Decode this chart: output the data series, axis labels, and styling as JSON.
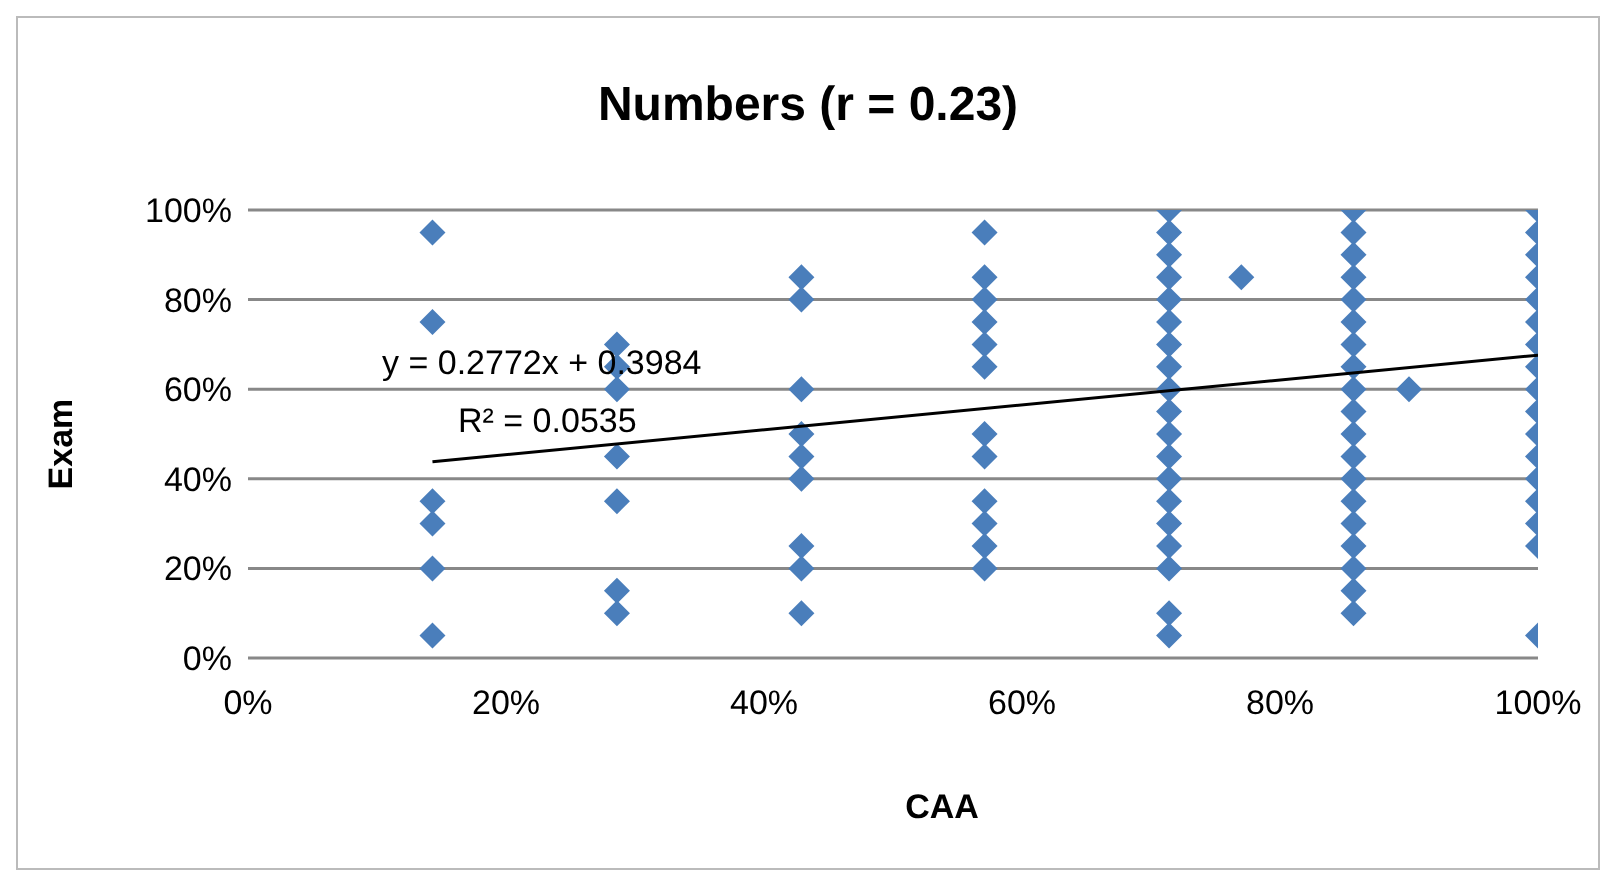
{
  "chart_data": {
    "type": "scatter",
    "title": "Numbers (r = 0.23)",
    "xlabel": "CAA",
    "ylabel": "Exam",
    "xlim": [
      0,
      1
    ],
    "ylim": [
      0,
      1
    ],
    "xticks": [
      {
        "value": 0,
        "label": "0%"
      },
      {
        "value": 0.2,
        "label": "20%"
      },
      {
        "value": 0.4,
        "label": "40%"
      },
      {
        "value": 0.6,
        "label": "60%"
      },
      {
        "value": 0.8,
        "label": "80%"
      },
      {
        "value": 1,
        "label": "100%"
      }
    ],
    "yticks": [
      {
        "value": 0,
        "label": "0%"
      },
      {
        "value": 0.2,
        "label": "20%"
      },
      {
        "value": 0.4,
        "label": "40%"
      },
      {
        "value": 0.6,
        "label": "60%"
      },
      {
        "value": 0.8,
        "label": "80%"
      },
      {
        "value": 1,
        "label": "100%"
      }
    ],
    "grid": "y",
    "legend": false,
    "annotations": [
      "y = 0.2772x + 0.3984",
      "R² = 0.0535"
    ],
    "series": [
      {
        "marker": "diamond",
        "color": "#4a7ebb",
        "x": [
          0.143,
          0.143,
          0.143,
          0.143,
          0.143,
          0.143,
          0.286,
          0.286,
          0.286,
          0.286,
          0.286,
          0.286,
          0.286,
          0.429,
          0.429,
          0.429,
          0.429,
          0.429,
          0.429,
          0.429,
          0.429,
          0.429,
          0.571,
          0.571,
          0.571,
          0.571,
          0.571,
          0.571,
          0.571,
          0.571,
          0.571,
          0.571,
          0.571,
          0.571,
          0.714,
          0.714,
          0.714,
          0.714,
          0.714,
          0.714,
          0.714,
          0.714,
          0.714,
          0.714,
          0.714,
          0.714,
          0.714,
          0.714,
          0.714,
          0.714,
          0.714,
          0.714,
          0.714,
          0.77,
          0.857,
          0.857,
          0.857,
          0.857,
          0.857,
          0.857,
          0.857,
          0.857,
          0.857,
          0.857,
          0.857,
          0.857,
          0.857,
          0.857,
          0.857,
          0.857,
          0.857,
          0.857,
          0.857,
          0.9,
          1,
          1,
          1,
          1,
          1,
          1,
          1,
          1,
          1,
          1,
          1,
          1,
          1,
          1,
          1,
          1,
          1
        ],
        "values": [
          0.95,
          0.75,
          0.35,
          0.3,
          0.2,
          0.05,
          0.7,
          0.65,
          0.6,
          0.45,
          0.35,
          0.15,
          0.1,
          0.85,
          0.8,
          0.6,
          0.5,
          0.45,
          0.4,
          0.25,
          0.2,
          0.1,
          0.95,
          0.85,
          0.8,
          0.75,
          0.7,
          0.65,
          0.5,
          0.45,
          0.35,
          0.3,
          0.25,
          0.2,
          1,
          0.95,
          0.9,
          0.85,
          0.8,
          0.75,
          0.7,
          0.65,
          0.6,
          0.55,
          0.5,
          0.45,
          0.4,
          0.35,
          0.3,
          0.25,
          0.2,
          0.1,
          0.05,
          0.85,
          1,
          0.95,
          0.9,
          0.85,
          0.8,
          0.75,
          0.7,
          0.65,
          0.6,
          0.55,
          0.5,
          0.45,
          0.4,
          0.35,
          0.3,
          0.25,
          0.2,
          0.15,
          0.1,
          0.6,
          1,
          0.95,
          0.9,
          0.85,
          0.8,
          0.75,
          0.7,
          0.65,
          0.6,
          0.55,
          0.5,
          0.45,
          0.4,
          0.35,
          0.3,
          0.25,
          0.05
        ]
      },
      {
        "type": "line",
        "color": "#000000",
        "x": [
          0.143,
          1
        ],
        "values": [
          0.438,
          0.676
        ]
      }
    ]
  }
}
